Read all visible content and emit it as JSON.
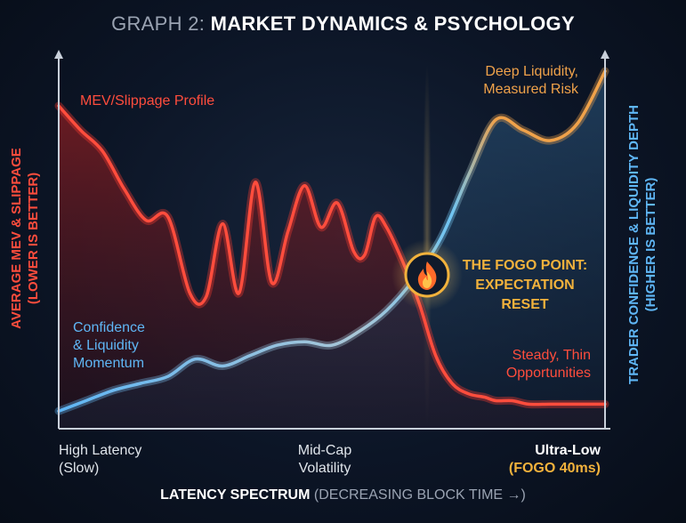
{
  "title": {
    "prefix": "GRAPH 2:",
    "main": "MARKET DYNAMICS & PSYCHOLOGY"
  },
  "y_left_label": {
    "line1": "AVERAGE MEV & SLIPPAGE",
    "line2": "(LOWER IS BETTER)"
  },
  "y_right_label": {
    "line1": "TRADER CONFIDENCE & LIQUIDITY DEPTH",
    "line2": "(HIGHER IS BETTER)"
  },
  "x_label": {
    "main": "LATENCY SPECTRUM",
    "sub": "(DECREASING BLOCK TIME →)"
  },
  "ticks": {
    "left": {
      "line1": "High Latency",
      "line2": "(Slow)"
    },
    "middle": {
      "line1": "Mid-Cap",
      "line2": "Volatility"
    },
    "right": {
      "line1": "Ultra-Low",
      "line2": "(FOGO 40ms)"
    }
  },
  "annotations": {
    "mev": "MEV/Slippage Profile",
    "confidence": {
      "line1": "Confidence",
      "line2": "& Liquidity",
      "line3": "Momentum"
    },
    "deep": {
      "line1": "Deep Liquidity,",
      "line2": "Measured Risk"
    },
    "steady": {
      "line1": "Steady, Thin",
      "line2": "Opportunities"
    },
    "fogo": {
      "line1": "THE FOGO POINT:",
      "line2": "EXPECTATION",
      "line3": "RESET"
    }
  },
  "colors": {
    "mev": "#ff3b30",
    "confidence": "#5fb6f5",
    "deep": "#f0a24a",
    "fogo": "#f2b23c"
  },
  "icons": {
    "fogo_point": "flame-icon"
  },
  "chart_data": {
    "type": "line",
    "x_range": [
      0,
      1
    ],
    "y_range": [
      0,
      1
    ],
    "grid": false,
    "series": [
      {
        "name": "MEV/Slippage Profile",
        "x": [
          0,
          0.04,
          0.08,
          0.12,
          0.16,
          0.2,
          0.24,
          0.27,
          0.3,
          0.33,
          0.36,
          0.39,
          0.42,
          0.45,
          0.48,
          0.51,
          0.54,
          0.56,
          0.58,
          0.6,
          0.63,
          0.66,
          0.69,
          0.72,
          0.75,
          0.78,
          0.8,
          0.83,
          0.86,
          0.9,
          0.95,
          1
        ],
        "y": [
          0.9,
          0.83,
          0.77,
          0.66,
          0.57,
          0.58,
          0.36,
          0.35,
          0.56,
          0.36,
          0.68,
          0.39,
          0.54,
          0.67,
          0.55,
          0.62,
          0.48,
          0.47,
          0.58,
          0.55,
          0.45,
          0.33,
          0.18,
          0.1,
          0.07,
          0.06,
          0.05,
          0.05,
          0.04,
          0.04,
          0.04,
          0.04
        ]
      },
      {
        "name": "Confidence & Liquidity Momentum",
        "x": [
          0,
          0.05,
          0.1,
          0.15,
          0.2,
          0.25,
          0.3,
          0.35,
          0.4,
          0.45,
          0.5,
          0.55,
          0.6,
          0.65,
          0.7,
          0.75,
          0.8,
          0.85,
          0.9,
          0.95,
          1
        ],
        "y": [
          0.02,
          0.05,
          0.08,
          0.1,
          0.12,
          0.17,
          0.15,
          0.18,
          0.21,
          0.22,
          0.21,
          0.25,
          0.31,
          0.4,
          0.52,
          0.7,
          0.86,
          0.83,
          0.8,
          0.85,
          1
        ]
      }
    ]
  }
}
